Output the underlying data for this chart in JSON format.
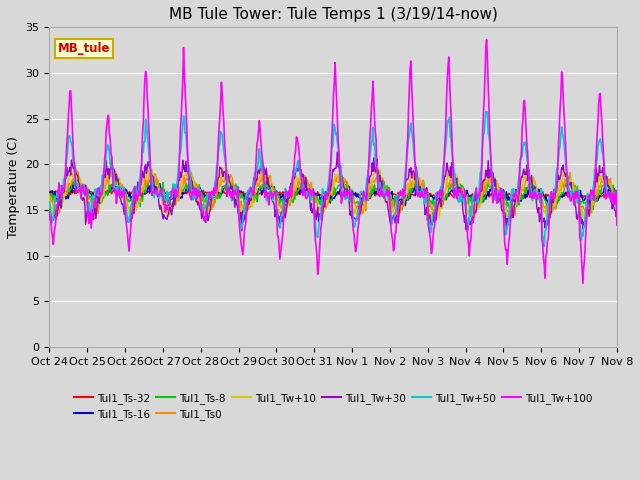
{
  "title": "MB Tule Tower: Tule Temps 1 (3/19/14-now)",
  "ylabel": "Temperature (C)",
  "ylim": [
    0,
    35
  ],
  "yticks": [
    0,
    5,
    10,
    15,
    20,
    25,
    30,
    35
  ],
  "xlim": [
    0,
    15
  ],
  "xtick_labels": [
    "Oct 24",
    "Oct 25",
    "Oct 26",
    "Oct 27",
    "Oct 28",
    "Oct 29",
    "Oct 30",
    "Oct 31",
    "Nov 1",
    "Nov 2",
    "Nov 3",
    "Nov 4",
    "Nov 5",
    "Nov 6",
    "Nov 7",
    "Nov 8"
  ],
  "station_label": "MB_tule",
  "station_label_color": "#cc0000",
  "station_box_facecolor": "#ffffcc",
  "station_box_edgecolor": "#ccaa00",
  "series_names": [
    "Tul1_Ts-32",
    "Tul1_Ts-16",
    "Tul1_Ts-8",
    "Tul1_Ts0",
    "Tul1_Tw+10",
    "Tul1_Tw+30",
    "Tul1_Tw+50",
    "Tul1_Tw+100"
  ],
  "series_colors": [
    "#ff0000",
    "#0000cc",
    "#00cc00",
    "#ff8800",
    "#cccc00",
    "#9900cc",
    "#00cccc",
    "#ff00ff"
  ],
  "background_color": "#d8d8d8",
  "plot_bg_color": "#d8d8d8",
  "grid_color": "#ffffff",
  "title_fontsize": 11,
  "axis_fontsize": 9,
  "tick_fontsize": 8
}
